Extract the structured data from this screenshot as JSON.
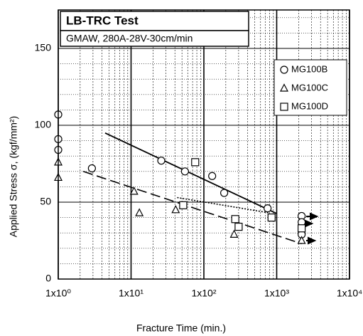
{
  "chart_data": {
    "type": "scatter",
    "title": "LB-TRC Test",
    "subtitle": "GMAW, 280A-28V-30cm/min",
    "x_label": "Fracture Time (min.)",
    "y_label": "Applied Stress σ, (kgf/mm²)",
    "xscale": "log",
    "xlim": [
      1,
      10000
    ],
    "ylim": [
      0,
      175
    ],
    "xticks": [
      {
        "value": 1,
        "label": "1x10⁰"
      },
      {
        "value": 10,
        "label": "1x10¹"
      },
      {
        "value": 100,
        "label": "1x10²"
      },
      {
        "value": 1000,
        "label": "1x10³"
      },
      {
        "value": 10000,
        "label": "1x10⁴"
      }
    ],
    "yticks": [
      0,
      50,
      100,
      150
    ],
    "xminor": [
      2,
      3,
      4,
      5,
      6,
      7,
      8,
      9,
      20,
      30,
      40,
      50,
      60,
      70,
      80,
      90,
      200,
      300,
      400,
      500,
      600,
      700,
      800,
      900,
      2000,
      3000,
      4000,
      5000,
      6000,
      7000,
      8000,
      9000
    ],
    "yminor": [
      10,
      20,
      30,
      40,
      60,
      70,
      80,
      90,
      110,
      120,
      130,
      140,
      160,
      170
    ],
    "grid": true,
    "legend": "upper right",
    "series": [
      {
        "name": "MG100B",
        "marker": "circle",
        "color": "#000",
        "x": [
          1,
          1,
          1,
          2.9,
          26,
          55,
          130,
          190,
          750,
          2200,
          2200,
          2200
        ],
        "y": [
          107,
          91,
          84,
          72,
          77,
          70,
          67,
          56,
          46,
          41,
          37,
          29
        ],
        "fit": {
          "x": [
            4.4,
            1000
          ],
          "y": [
            95,
            42.6
          ],
          "dash": "solid"
        }
      },
      {
        "name": "MG100C",
        "marker": "triangle",
        "color": "#000",
        "x": [
          1,
          1,
          11,
          13,
          41,
          260,
          2200
        ],
        "y": [
          76,
          66,
          57,
          43,
          45,
          29,
          25
        ],
        "fit": {
          "x": [
            2.2,
            2200
          ],
          "y": [
            70,
            23
          ],
          "dash": "dashed"
        }
      },
      {
        "name": "MG100D",
        "marker": "square",
        "color": "#000",
        "x": [
          76,
          52,
          270,
          300,
          850,
          2200
        ],
        "y": [
          76,
          48,
          39,
          34,
          40,
          33
        ],
        "fit": {
          "x": [
            43,
            800
          ],
          "y": [
            53,
            43
          ],
          "dash": "dotted"
        }
      }
    ]
  }
}
